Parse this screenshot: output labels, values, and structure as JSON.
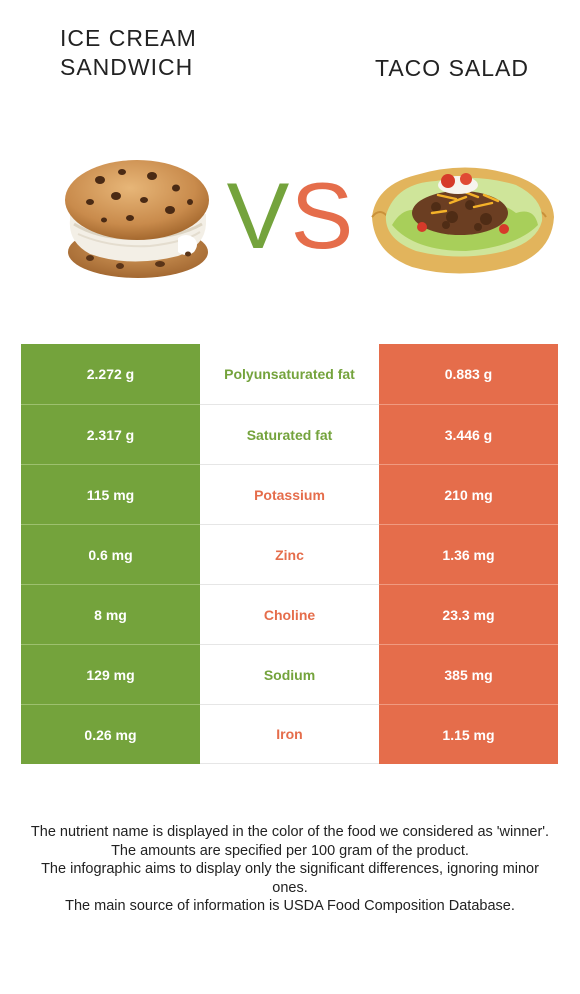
{
  "foods": {
    "left": {
      "name": "ICE CREAM SANDWICH",
      "color": "#74a33c"
    },
    "right": {
      "name": "TACO SALAD",
      "color": "#e56d4b"
    }
  },
  "vs": {
    "left_letter": "V",
    "right_letter": "S"
  },
  "rows": [
    {
      "nutrient": "Polyunsaturated fat",
      "left": "2.272 g",
      "right": "0.883 g",
      "winner": "left"
    },
    {
      "nutrient": "Saturated fat",
      "left": "2.317 g",
      "right": "3.446 g",
      "winner": "left"
    },
    {
      "nutrient": "Potassium",
      "left": "115 mg",
      "right": "210 mg",
      "winner": "right"
    },
    {
      "nutrient": "Zinc",
      "left": "0.6 mg",
      "right": "1.36 mg",
      "winner": "right"
    },
    {
      "nutrient": "Choline",
      "left": "8 mg",
      "right": "23.3 mg",
      "winner": "right"
    },
    {
      "nutrient": "Sodium",
      "left": "129 mg",
      "right": "385 mg",
      "winner": "left"
    },
    {
      "nutrient": "Iron",
      "left": "0.26 mg",
      "right": "1.15 mg",
      "winner": "right"
    }
  ],
  "footnotes": [
    "The nutrient name is displayed in the color of the food we considered as 'winner'.",
    "The amounts are specified per 100 gram of the product.",
    "The infographic aims to display only the significant differences, ignoring minor ones.",
    "The main source of information is USDA Food Composition Database."
  ]
}
